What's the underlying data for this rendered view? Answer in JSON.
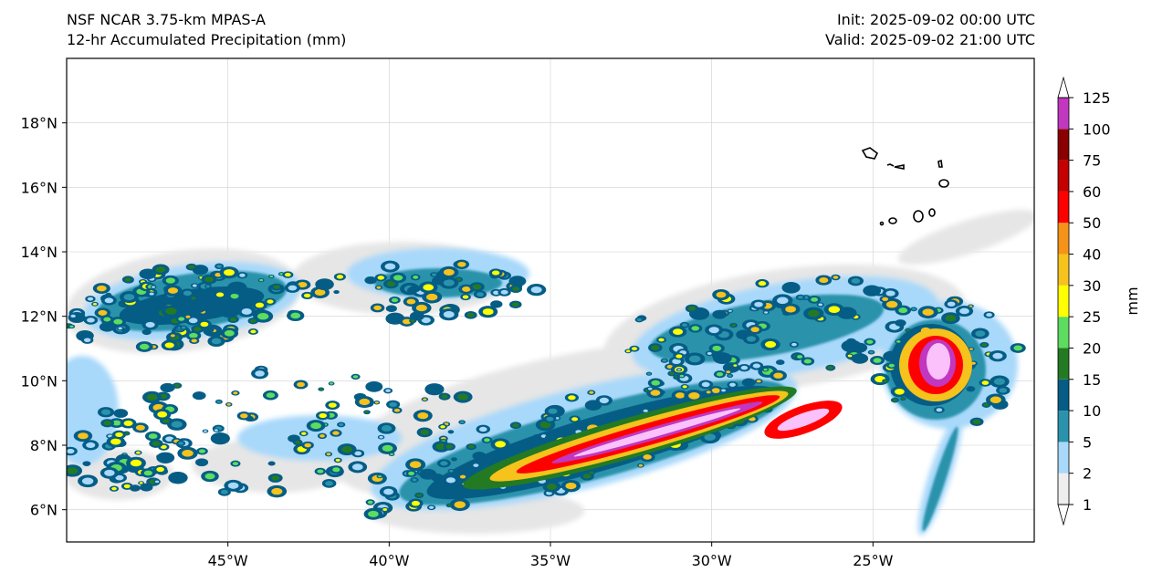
{
  "header": {
    "model": "NSF NCAR 3.75-km MPAS-A",
    "field": "12-hr Accumulated Precipitation (mm)",
    "init": "Init: 2025-09-02 00:00 UTC",
    "valid": "Valid: 2025-09-02 21:00 UTC"
  },
  "map": {
    "lon_range": [
      -50,
      -20
    ],
    "lat_range": [
      5,
      20
    ],
    "lon_ticks": [
      {
        "value": -45,
        "label": "45°W"
      },
      {
        "value": -40,
        "label": "40°W"
      },
      {
        "value": -35,
        "label": "35°W"
      },
      {
        "value": -30,
        "label": "30°W"
      },
      {
        "value": -25,
        "label": "25°W"
      }
    ],
    "lat_ticks": [
      {
        "value": 6,
        "label": "6°N"
      },
      {
        "value": 8,
        "label": "8°N"
      },
      {
        "value": 10,
        "label": "10°N"
      },
      {
        "value": 12,
        "label": "12°N"
      },
      {
        "value": 14,
        "label": "14°N"
      },
      {
        "value": 16,
        "label": "16°N"
      },
      {
        "value": 18,
        "label": "18°N"
      }
    ]
  },
  "colorbar": {
    "unit_label": "mm",
    "levels": [
      "1",
      "2",
      "5",
      "10",
      "15",
      "20",
      "25",
      "30",
      "40",
      "50",
      "60",
      "75",
      "100",
      "125"
    ],
    "colors": [
      "#eeeeee",
      "#a8d8fa",
      "#2a93ab",
      "#055d86",
      "#247a22",
      "#5ddc5f",
      "#ffff00",
      "#f6c21c",
      "#f59318",
      "#ff0000",
      "#c40000",
      "#8a0000",
      "#c137c0",
      "#fac1fa",
      "#ffffff"
    ]
  }
}
